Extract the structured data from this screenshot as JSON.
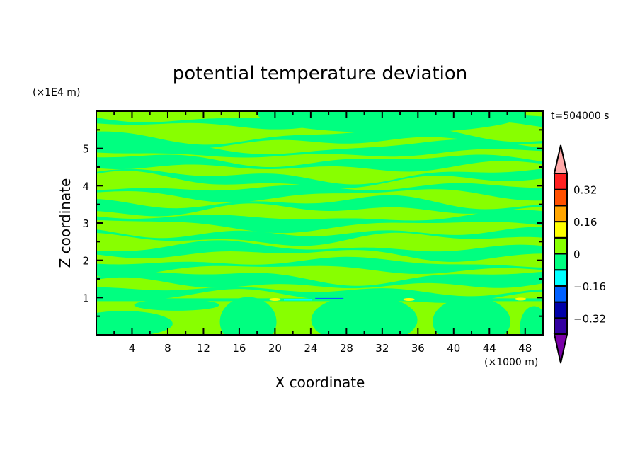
{
  "chart_data": {
    "type": "heatmap",
    "title": "potential temperature deviation",
    "xlabel": "X coordinate",
    "ylabel": "Z coordinate",
    "x_unit": "(×1000 m)",
    "y_unit": "(×1E4 m)",
    "time_label": "t=504000 s",
    "xlim": [
      0,
      50
    ],
    "ylim": [
      0,
      6
    ],
    "x_ticks": [
      4,
      8,
      12,
      16,
      20,
      24,
      28,
      32,
      36,
      40,
      44,
      48
    ],
    "y_ticks": [
      1,
      2,
      3,
      4,
      5
    ],
    "grid": false,
    "colorbar": {
      "levels": [
        -0.4,
        -0.32,
        -0.24,
        -0.16,
        -0.08,
        0,
        0.08,
        0.16,
        0.24,
        0.32,
        0.4
      ],
      "labels": [
        "0.32",
        "0.16",
        "0",
        "−0.16",
        "−0.32"
      ],
      "label_values": [
        0.32,
        0.16,
        0,
        -0.16,
        -0.32
      ],
      "colors": [
        "#3300a0",
        "#0000a8",
        "#0060ff",
        "#00ffff",
        "#00ff80",
        "#88ff00",
        "#ffff00",
        "#ffa500",
        "#ff5000",
        "#ff2020"
      ],
      "under_color": "#7a00a8",
      "over_color": "#ffa8a8",
      "placement": "right"
    },
    "dominant_values": "field mostly between -0.08 and 0.08, alternating horizontal layers; small extremes near z=1"
  }
}
